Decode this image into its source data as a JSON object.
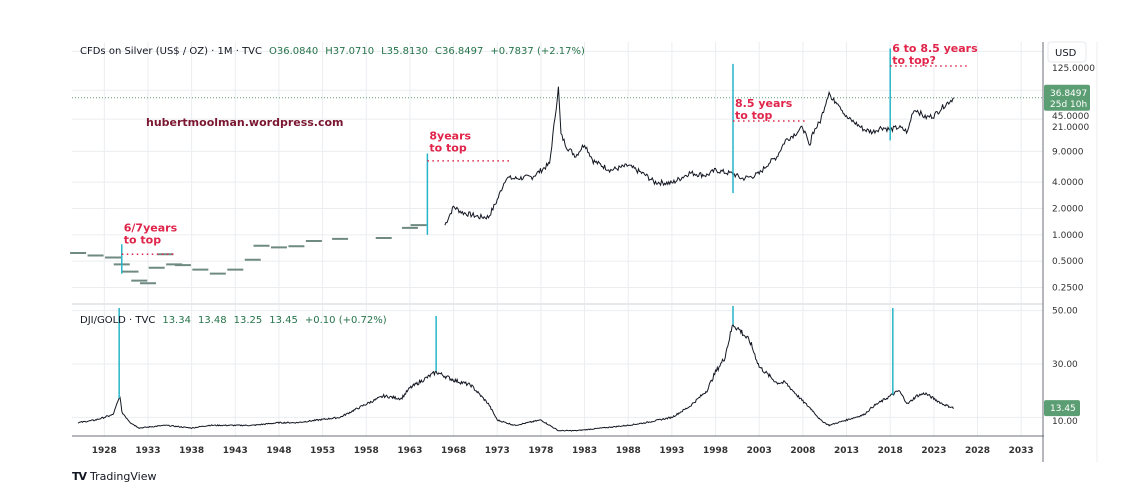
{
  "chart_data": [
    {
      "type": "line",
      "panel": "top",
      "title": "CFDs on Silver (US$ / OZ) · 1M · TVC",
      "ohlc": {
        "open": "O36.0840",
        "high": "H37.0710",
        "low": "L35.8130",
        "close": "C36.8497",
        "change": "+0.7837 (+2.17%)"
      },
      "currency_label": "USD",
      "scale": "log",
      "ylim": [
        0.18,
        160
      ],
      "y_ticks": [
        "125.0000",
        "45.0000",
        "21.0000",
        "9.0000",
        "4.0000",
        "2.0000",
        "1.0000",
        "0.5000",
        "0.2500"
      ],
      "y_tick_values": [
        125,
        45,
        21,
        9,
        4,
        2,
        1,
        0.5,
        0.25
      ],
      "last_price_label": "36.8497",
      "countdown_label": "25d 10h",
      "last_price": 36.85,
      "x": [
        1925,
        1927,
        1929,
        1930,
        1931,
        1932,
        1933,
        1934,
        1935,
        1936,
        1937,
        1939,
        1941,
        1943,
        1945,
        1946,
        1948,
        1950,
        1952,
        1955,
        1960,
        1963,
        1964,
        1967,
        1968,
        1969,
        1970,
        1971,
        1972,
        1973,
        1974,
        1975,
        1977,
        1979,
        1980,
        1980.3,
        1981,
        1982,
        1983,
        1984,
        1986,
        1988,
        1990,
        1991,
        1993,
        1995,
        1997,
        1998,
        1999,
        2000,
        2001,
        2002,
        2003,
        2004,
        2005,
        2006,
        2007,
        2008,
        2008.8,
        2009,
        2010,
        2011,
        2011.3,
        2012,
        2013,
        2014,
        2015,
        2016,
        2017,
        2018,
        2019,
        2020,
        2020.6,
        2021,
        2022,
        2023,
        2024,
        2025.3
      ],
      "values": [
        0.62,
        0.58,
        0.55,
        0.46,
        0.38,
        0.3,
        0.28,
        0.42,
        0.6,
        0.46,
        0.45,
        0.4,
        0.36,
        0.4,
        0.52,
        0.75,
        0.72,
        0.74,
        0.85,
        0.9,
        0.92,
        1.2,
        1.29,
        1.29,
        2.1,
        1.8,
        1.7,
        1.6,
        1.6,
        2.5,
        4.5,
        4.4,
        4.6,
        6.5,
        48,
        14,
        10,
        8,
        11,
        7,
        5.5,
        6.2,
        4.8,
        4.0,
        3.9,
        5.1,
        4.8,
        5.5,
        5.2,
        5.0,
        4.4,
        4.6,
        5.0,
        6.5,
        7.8,
        12,
        14,
        17,
        10,
        14,
        20,
        44,
        35,
        33,
        22,
        19,
        16,
        15,
        17,
        16,
        17,
        15,
        26,
        27,
        22,
        23,
        29,
        36.85
      ],
      "events": [
        {
          "label": "6/7years to top",
          "year": 1930
        },
        {
          "label": "8years to top",
          "year": 1965
        },
        {
          "label": "8.5 years to top",
          "year": 2000
        },
        {
          "label": "6 to 8.5 years to top?",
          "year": 2018
        }
      ],
      "watermark": "hubertmoolman.wordpress.com"
    },
    {
      "type": "line",
      "panel": "bottom",
      "title": "DJI/GOLD · TVC",
      "ohlc": {
        "open": "13.34",
        "high": "13.48",
        "low": "13.25",
        "close": "13.45",
        "change": "+0.10 (+0.72%)"
      },
      "ylim": [
        3,
        51
      ],
      "y_ticks": [
        "50.00",
        "30.00",
        "10.00"
      ],
      "y_tick_values": [
        50,
        30,
        10
      ],
      "last_price_label": "13.45",
      "last_price": 13.45,
      "x": [
        1925,
        1927,
        1929,
        1929.8,
        1930,
        1931,
        1932,
        1935,
        1938,
        1940,
        1943,
        1945,
        1948,
        1950,
        1955,
        1958,
        1960,
        1962,
        1963,
        1966,
        1968,
        1970,
        1972,
        1973,
        1975,
        1978,
        1980,
        1982,
        1985,
        1988,
        1990,
        1993,
        1995,
        1997,
        1998,
        1999,
        2000,
        2001,
        2002,
        2003,
        2005,
        2006,
        2008,
        2009,
        2010,
        2011,
        2012,
        2015,
        2016,
        2018,
        2019,
        2020,
        2021,
        2022,
        2023,
        2024,
        2025.3
      ],
      "values": [
        8,
        9,
        11,
        18,
        12,
        8,
        6,
        7,
        6,
        7,
        7,
        7,
        8,
        8,
        10,
        15,
        18,
        17,
        21,
        27,
        24,
        22,
        15,
        9,
        7,
        9,
        5,
        5,
        6,
        7,
        8,
        10,
        14,
        20,
        27,
        32,
        45,
        42,
        38,
        29,
        23,
        23,
        16,
        13,
        9,
        7,
        8,
        11,
        14,
        18,
        20,
        15,
        18,
        19,
        17,
        15,
        13.45
      ],
      "event_years": [
        1929.7,
        1966,
        2000,
        2018.3
      ]
    }
  ],
  "x_axis": {
    "ticks": [
      "1928",
      "1933",
      "1938",
      "1943",
      "1948",
      "1953",
      "1958",
      "1963",
      "1968",
      "1973",
      "1978",
      "1983",
      "1988",
      "1993",
      "1998",
      "2003",
      "2008",
      "2013",
      "2018",
      "2023",
      "2028",
      "2033"
    ],
    "range": [
      1924.3,
      2035.5
    ]
  },
  "footer": {
    "brand": "TradingView",
    "logo_mark": "TV"
  },
  "colors": {
    "price_line": "#131722",
    "early_price": "#6f8a80",
    "event_line": "#26b5c8",
    "annotation": "#e0244a",
    "watermark": "#7a1630",
    "last_price_badge": "#5c9e73",
    "grid": "#ebedf0",
    "legend_values": "#26734a"
  }
}
